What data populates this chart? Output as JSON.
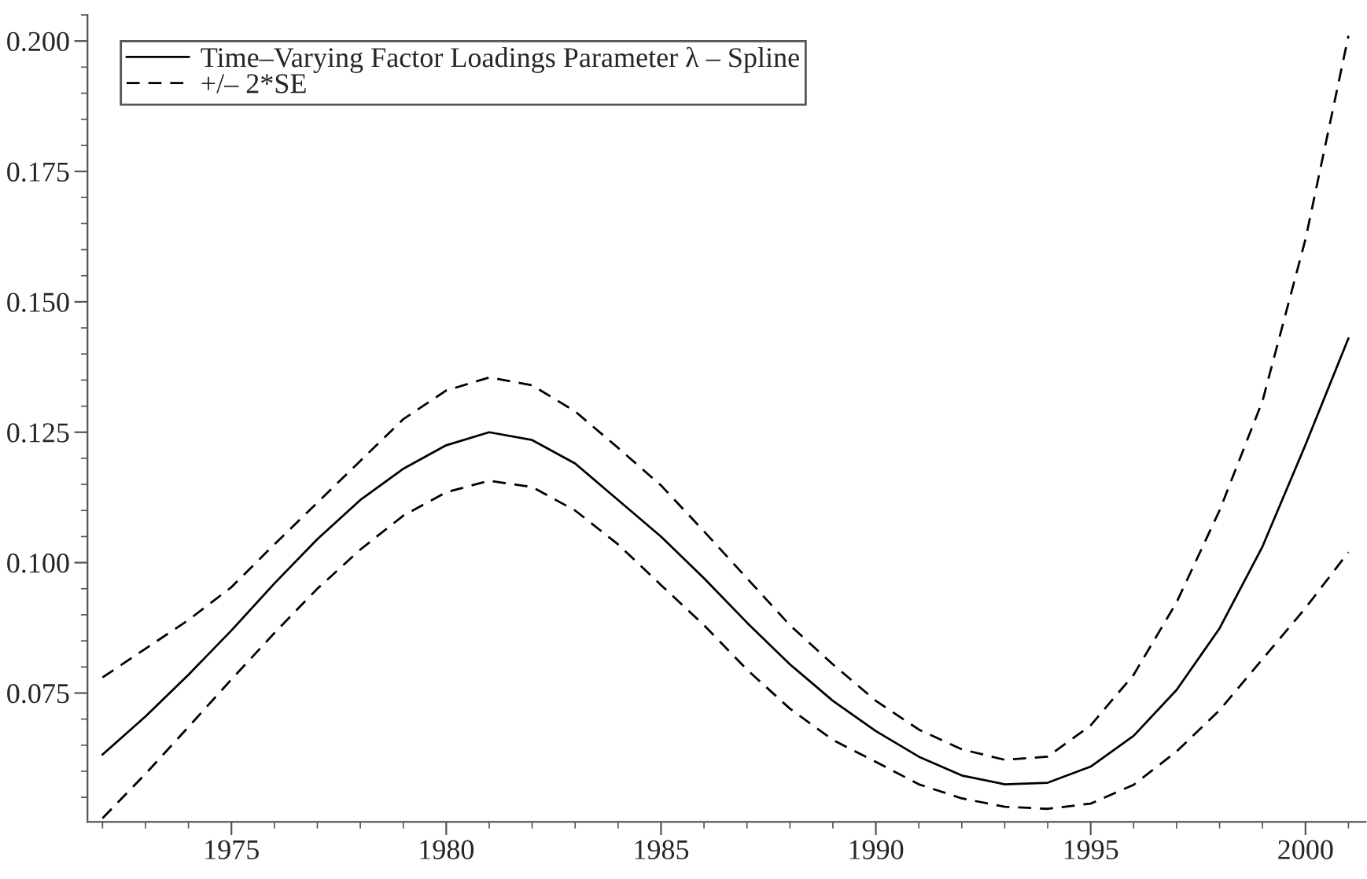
{
  "chart_data": {
    "type": "line",
    "x": [
      1972,
      1973,
      1974,
      1975,
      1976,
      1977,
      1978,
      1979,
      1980,
      1981,
      1982,
      1983,
      1984,
      1985,
      1986,
      1987,
      1988,
      1989,
      1990,
      1991,
      1992,
      1993,
      1994,
      1995,
      1996,
      1997,
      1998,
      1999,
      2000,
      2001
    ],
    "series": [
      {
        "name": "Time–Varying Factor Loadings Parameter λ – Spline",
        "color": "#000000",
        "line_style": "solid",
        "values": [
          0.0632,
          0.0705,
          0.0785,
          0.087,
          0.096,
          0.1045,
          0.112,
          0.118,
          0.1225,
          0.125,
          0.1235,
          0.119,
          0.112,
          0.105,
          0.097,
          0.0885,
          0.0805,
          0.0735,
          0.0677,
          0.0628,
          0.0592,
          0.0575,
          0.0578,
          0.0609,
          0.0668,
          0.0756,
          0.0874,
          0.1031,
          0.1226,
          0.143
        ]
      },
      {
        "name": "+/– 2*SE",
        "color": "#000000",
        "line_style": "dashed",
        "values": [
          0.078,
          0.0835,
          0.089,
          0.0953,
          0.1035,
          0.1115,
          0.1195,
          0.1275,
          0.133,
          0.1355,
          0.134,
          0.129,
          0.122,
          0.1148,
          0.106,
          0.097,
          0.088,
          0.0805,
          0.0735,
          0.068,
          0.0642,
          0.0622,
          0.0628,
          0.0688,
          0.0785,
          0.0924,
          0.11,
          0.131,
          0.162,
          0.201
        ]
      },
      {
        "color": "#000000",
        "line_style": "dashed",
        "values": [
          0.051,
          0.0595,
          0.0685,
          0.0776,
          0.0865,
          0.095,
          0.1025,
          0.109,
          0.1135,
          0.1157,
          0.1145,
          0.11,
          0.1035,
          0.0957,
          0.088,
          0.0795,
          0.072,
          0.066,
          0.0618,
          0.0575,
          0.0548,
          0.0532,
          0.0528,
          0.0538,
          0.0574,
          0.0638,
          0.0717,
          0.0815,
          0.0913,
          0.102
        ]
      }
    ],
    "xlim": [
      1971.65,
      2001.4
    ],
    "ylim": [
      0.0503,
      0.205
    ],
    "xticks": [
      1975,
      1980,
      1985,
      1990,
      1995,
      2000
    ],
    "yticks": [
      {
        "value": 0.075,
        "label": "0.075"
      },
      {
        "value": 0.1,
        "label": "0.100"
      },
      {
        "value": 0.125,
        "label": "0.125"
      },
      {
        "value": 0.15,
        "label": "0.150"
      },
      {
        "value": 0.175,
        "label": "0.175"
      },
      {
        "value": 0.2,
        "label": "0.200"
      }
    ],
    "legend": "top left",
    "grid": false,
    "marker": "none"
  }
}
